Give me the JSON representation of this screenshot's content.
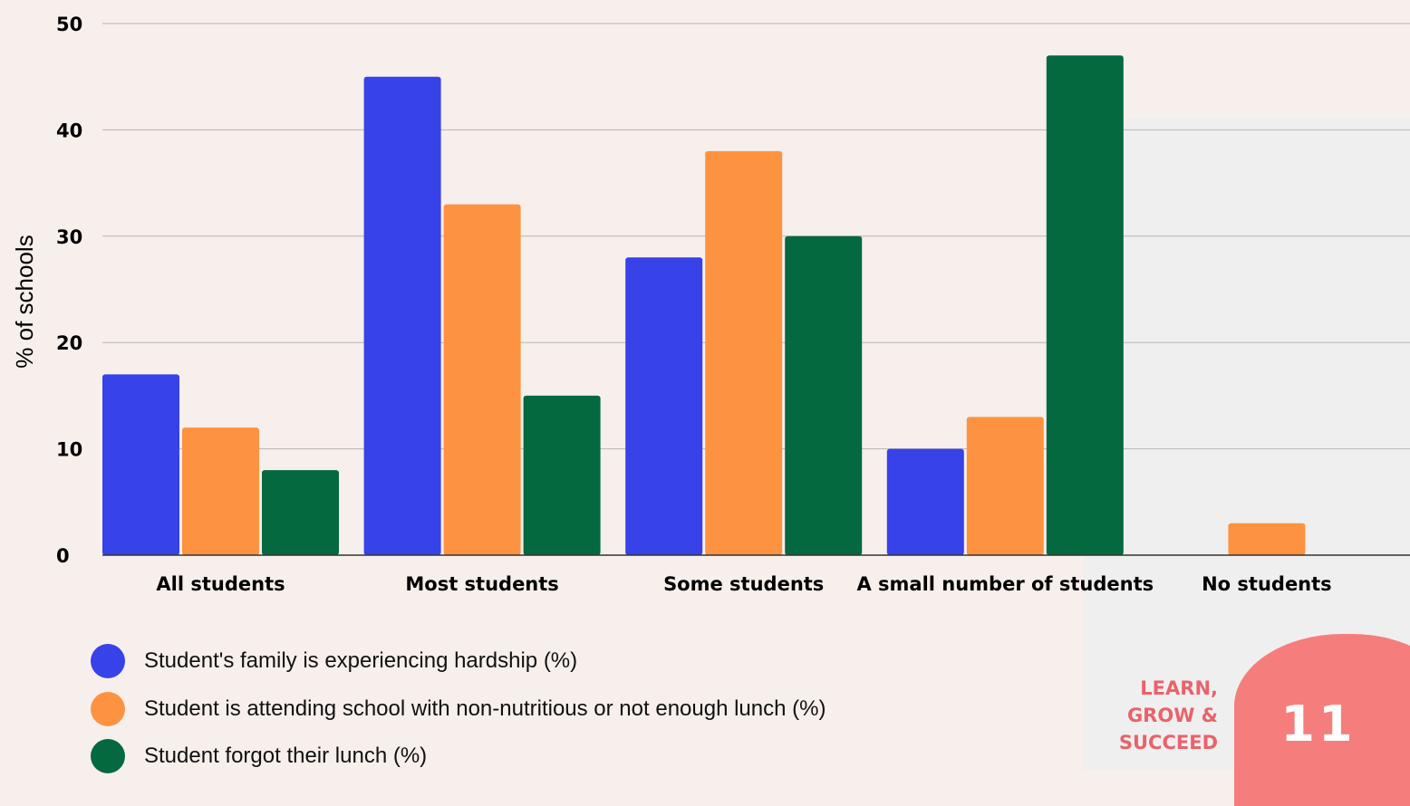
{
  "chart_data": {
    "type": "bar",
    "categories": [
      "All students",
      "Most students",
      "Some students",
      "A small number of students",
      "No students"
    ],
    "series": [
      {
        "name": "Student's family is experiencing hardship (%)",
        "color": "#3742e8",
        "values": [
          17,
          45,
          28,
          10,
          0
        ]
      },
      {
        "name": "Student is attending school with non-nutritious or not enough lunch (%)",
        "color": "#fd9340",
        "values": [
          12,
          33,
          38,
          13,
          3
        ]
      },
      {
        "name": "Student forgot their lunch (%)",
        "color": "#05693f",
        "values": [
          8,
          15,
          30,
          47,
          0
        ]
      }
    ],
    "ylabel": "% of schools",
    "xlabel": "",
    "ylim": [
      0,
      50
    ],
    "yticks": [
      0,
      10,
      20,
      30,
      40,
      50
    ],
    "grid": true,
    "legend_position": "bottom-left"
  },
  "brand": {
    "line1": "LEARN,",
    "line2": "GROW &",
    "line3": "SUCCEED"
  },
  "page_number": "11",
  "colors": {
    "background": "#f7efec",
    "brand": "#e8636a",
    "page_blob": "#f57e7d"
  }
}
